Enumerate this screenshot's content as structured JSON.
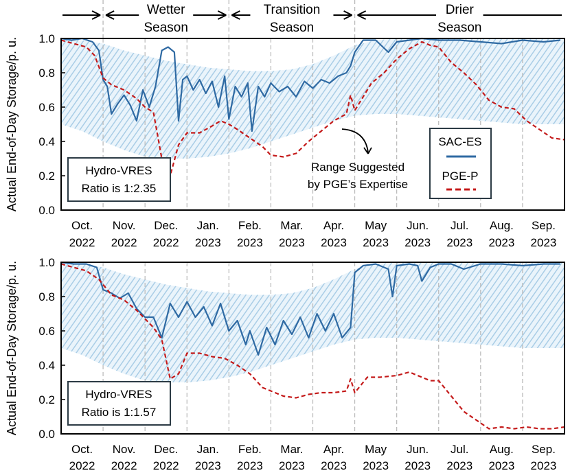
{
  "colors": {
    "sac": "#2f6aa3",
    "pge": "#c41a1a",
    "band": "#a9cde6",
    "divider": "#b8b8b8"
  },
  "seasons": [
    {
      "label_line1": "",
      "label_line2": "",
      "start": 0,
      "end": 1
    },
    {
      "label_line1": "Wetter",
      "label_line2": "Season",
      "start": 1,
      "end": 4
    },
    {
      "label_line1": "Transition",
      "label_line2": "Season",
      "start": 4,
      "end": 7
    },
    {
      "label_line1": "Drier",
      "label_line2": "Season",
      "start": 7,
      "end": 12
    }
  ],
  "chart_data": [
    {
      "type": "line",
      "ylabel": "Actual End-of-Day Storage/p. u.",
      "ylim": [
        0,
        1.0
      ],
      "yticks": [
        "0.0",
        "0.2",
        "0.4",
        "0.6",
        "0.8",
        "1.0"
      ],
      "months": [
        {
          "m": "Oct.",
          "y": "2022"
        },
        {
          "m": "Nov.",
          "y": "2022"
        },
        {
          "m": "Dec.",
          "y": "2022"
        },
        {
          "m": "Jan.",
          "y": "2023"
        },
        {
          "m": "Feb.",
          "y": "2023"
        },
        {
          "m": "Mar.",
          "y": "2023"
        },
        {
          "m": "Apr.",
          "y": "2023"
        },
        {
          "m": "May",
          "y": "2023"
        },
        {
          "m": "Jun.",
          "y": "2023"
        },
        {
          "m": "Jul.",
          "y": "2023"
        },
        {
          "m": "Aug.",
          "y": "2023"
        },
        {
          "m": "Sep.",
          "y": "2023"
        }
      ],
      "annotation": {
        "line1": "Hydro-VRES",
        "line2": "Ratio is 1:2.35"
      },
      "range_note": {
        "line1": "Range Suggested",
        "line2": "by PGE’s Expertise"
      },
      "legend": [
        "SAC-ES",
        "PGE-P"
      ],
      "band": {
        "x": [
          0,
          0.5,
          1,
          1.5,
          2,
          2.5,
          3,
          3.5,
          4,
          4.5,
          5,
          5.5,
          6,
          6.5,
          7,
          7.5,
          8,
          8.5,
          9,
          9.5,
          10,
          10.5,
          11,
          11.5,
          12
        ],
        "upper": [
          1.0,
          0.99,
          0.97,
          0.93,
          0.9,
          0.87,
          0.85,
          0.83,
          0.82,
          0.81,
          0.81,
          0.82,
          0.85,
          0.9,
          0.96,
          0.99,
          1.0,
          1.0,
          1.0,
          1.0,
          1.0,
          1.0,
          1.0,
          1.0,
          1.0
        ],
        "lower": [
          0.5,
          0.46,
          0.4,
          0.35,
          0.31,
          0.3,
          0.3,
          0.31,
          0.33,
          0.36,
          0.4,
          0.44,
          0.48,
          0.52,
          0.55,
          0.56,
          0.56,
          0.55,
          0.54,
          0.53,
          0.52,
          0.51,
          0.5,
          0.5,
          0.5
        ]
      },
      "series": [
        {
          "name": "SAC-ES",
          "x": [
            0,
            0.25,
            0.5,
            0.75,
            0.9,
            1.0,
            1.1,
            1.2,
            1.35,
            1.5,
            1.65,
            1.8,
            1.95,
            2.1,
            2.25,
            2.4,
            2.55,
            2.7,
            2.8,
            2.9,
            3.0,
            3.15,
            3.3,
            3.45,
            3.6,
            3.75,
            3.9,
            4.0,
            4.15,
            4.3,
            4.45,
            4.55,
            4.7,
            4.85,
            5.0,
            5.2,
            5.4,
            5.6,
            5.8,
            6.0,
            6.2,
            6.4,
            6.6,
            6.8,
            6.9,
            7.0,
            7.2,
            7.5,
            7.8,
            8.0,
            8.3,
            8.6,
            9.0,
            9.5,
            10.0,
            10.5,
            11.0,
            11.5,
            11.9
          ],
          "values": [
            1.0,
            0.99,
            1.0,
            0.98,
            0.93,
            0.76,
            0.72,
            0.56,
            0.62,
            0.67,
            0.61,
            0.52,
            0.7,
            0.6,
            0.72,
            0.93,
            0.95,
            0.92,
            0.52,
            0.76,
            0.78,
            0.7,
            0.76,
            0.68,
            0.75,
            0.6,
            0.78,
            0.53,
            0.72,
            0.66,
            0.74,
            0.46,
            0.72,
            0.66,
            0.74,
            0.69,
            0.72,
            0.66,
            0.75,
            0.71,
            0.76,
            0.74,
            0.78,
            0.8,
            0.84,
            0.92,
            0.99,
            0.99,
            0.92,
            0.98,
            0.99,
            1.0,
            0.99,
            0.99,
            0.98,
            0.97,
            0.99,
            0.98,
            0.99
          ]
        },
        {
          "name": "PGE-P",
          "x": [
            0,
            0.3,
            0.6,
            0.8,
            1.0,
            1.2,
            1.5,
            1.8,
            2.0,
            2.2,
            2.4,
            2.6,
            2.8,
            3.0,
            3.3,
            3.6,
            3.8,
            4.0,
            4.2,
            4.5,
            4.8,
            5.0,
            5.3,
            5.6,
            5.9,
            6.2,
            6.5,
            6.8,
            6.9,
            7.0,
            7.2,
            7.4,
            7.7,
            8.0,
            8.3,
            8.6,
            8.8,
            9.0,
            9.3,
            9.6,
            9.9,
            10.2,
            10.5,
            10.8,
            11.1,
            11.4,
            11.7,
            12.0
          ],
          "values": [
            0.99,
            0.97,
            0.95,
            0.9,
            0.77,
            0.73,
            0.7,
            0.65,
            0.6,
            0.57,
            0.3,
            0.2,
            0.38,
            0.45,
            0.45,
            0.49,
            0.52,
            0.5,
            0.47,
            0.42,
            0.37,
            0.32,
            0.31,
            0.33,
            0.4,
            0.46,
            0.52,
            0.56,
            0.67,
            0.58,
            0.66,
            0.74,
            0.8,
            0.88,
            0.94,
            0.98,
            0.96,
            0.95,
            0.86,
            0.8,
            0.73,
            0.64,
            0.6,
            0.59,
            0.52,
            0.47,
            0.42,
            0.41
          ]
        }
      ]
    },
    {
      "type": "line",
      "ylabel": "Actual End-of-Day Storage/p. u.",
      "ylim": [
        0,
        1.0
      ],
      "yticks": [
        "0.0",
        "0.2",
        "0.4",
        "0.6",
        "0.8",
        "1.0"
      ],
      "months": [
        {
          "m": "Oct.",
          "y": "2022"
        },
        {
          "m": "Nov.",
          "y": "2022"
        },
        {
          "m": "Dec.",
          "y": "2022"
        },
        {
          "m": "Jan.",
          "y": "2023"
        },
        {
          "m": "Feb.",
          "y": "2023"
        },
        {
          "m": "Mar.",
          "y": "2023"
        },
        {
          "m": "Apr.",
          "y": "2023"
        },
        {
          "m": "May",
          "y": "2023"
        },
        {
          "m": "Jun.",
          "y": "2023"
        },
        {
          "m": "Jul.",
          "y": "2023"
        },
        {
          "m": "Aug.",
          "y": "2023"
        },
        {
          "m": "Sep.",
          "y": "2023"
        }
      ],
      "annotation": {
        "line1": "Hydro-VRES",
        "line2": "Ratio is 1:1.57"
      },
      "band": {
        "x": [
          0,
          0.5,
          1,
          1.5,
          2,
          2.5,
          3,
          3.5,
          4,
          4.5,
          5,
          5.5,
          6,
          6.5,
          7,
          7.5,
          8,
          8.5,
          9,
          9.5,
          10,
          10.5,
          11,
          11.5,
          12
        ],
        "upper": [
          1.0,
          0.99,
          0.97,
          0.93,
          0.9,
          0.87,
          0.85,
          0.83,
          0.82,
          0.81,
          0.81,
          0.82,
          0.85,
          0.9,
          0.96,
          0.99,
          1.0,
          1.0,
          1.0,
          1.0,
          1.0,
          1.0,
          1.0,
          1.0,
          1.0
        ],
        "lower": [
          0.5,
          0.46,
          0.4,
          0.35,
          0.31,
          0.3,
          0.3,
          0.31,
          0.33,
          0.36,
          0.4,
          0.44,
          0.48,
          0.52,
          0.55,
          0.56,
          0.56,
          0.55,
          0.54,
          0.53,
          0.52,
          0.51,
          0.5,
          0.5,
          0.5
        ]
      },
      "series": [
        {
          "name": "SAC-ES",
          "x": [
            0,
            0.3,
            0.6,
            0.85,
            1.0,
            1.2,
            1.4,
            1.6,
            1.8,
            2.0,
            2.2,
            2.4,
            2.6,
            2.8,
            3.0,
            3.2,
            3.4,
            3.6,
            3.8,
            4.0,
            4.2,
            4.4,
            4.5,
            4.7,
            4.9,
            5.1,
            5.3,
            5.5,
            5.7,
            5.9,
            6.1,
            6.3,
            6.5,
            6.7,
            6.9,
            7.0,
            7.2,
            7.5,
            7.8,
            7.9,
            8.0,
            8.3,
            8.5,
            8.6,
            8.8,
            9.0,
            9.3,
            9.6,
            10.0,
            10.5,
            11.0,
            11.5,
            11.9
          ],
          "values": [
            1.0,
            0.99,
            0.99,
            0.97,
            0.84,
            0.82,
            0.79,
            0.82,
            0.73,
            0.68,
            0.68,
            0.56,
            0.76,
            0.68,
            0.77,
            0.68,
            0.74,
            0.63,
            0.76,
            0.6,
            0.66,
            0.52,
            0.6,
            0.46,
            0.62,
            0.52,
            0.66,
            0.58,
            0.68,
            0.56,
            0.7,
            0.6,
            0.7,
            0.56,
            0.62,
            0.94,
            0.98,
            0.99,
            0.96,
            0.8,
            0.98,
            0.99,
            0.98,
            0.89,
            0.97,
            0.99,
            0.99,
            0.96,
            0.99,
            0.99,
            0.98,
            0.99,
            0.99
          ]
        },
        {
          "name": "PGE-P",
          "x": [
            0,
            0.3,
            0.6,
            0.9,
            1.2,
            1.5,
            1.8,
            2.0,
            2.2,
            2.4,
            2.6,
            2.8,
            3.0,
            3.3,
            3.6,
            3.9,
            4.2,
            4.5,
            4.8,
            5.0,
            5.3,
            5.6,
            5.9,
            6.2,
            6.5,
            6.8,
            6.9,
            7.0,
            7.3,
            7.6,
            8.0,
            8.3,
            8.6,
            8.8,
            9.0,
            9.3,
            9.6,
            9.9,
            10.2,
            10.5,
            10.8,
            11.1,
            11.4,
            11.7,
            12.0
          ],
          "values": [
            0.99,
            0.97,
            0.95,
            0.9,
            0.81,
            0.78,
            0.72,
            0.67,
            0.62,
            0.55,
            0.32,
            0.35,
            0.47,
            0.47,
            0.45,
            0.44,
            0.4,
            0.35,
            0.27,
            0.25,
            0.22,
            0.21,
            0.23,
            0.24,
            0.24,
            0.25,
            0.32,
            0.24,
            0.33,
            0.33,
            0.34,
            0.36,
            0.33,
            0.31,
            0.31,
            0.22,
            0.13,
            0.08,
            0.03,
            0.04,
            0.03,
            0.04,
            0.03,
            0.03,
            0.04
          ]
        }
      ]
    }
  ]
}
